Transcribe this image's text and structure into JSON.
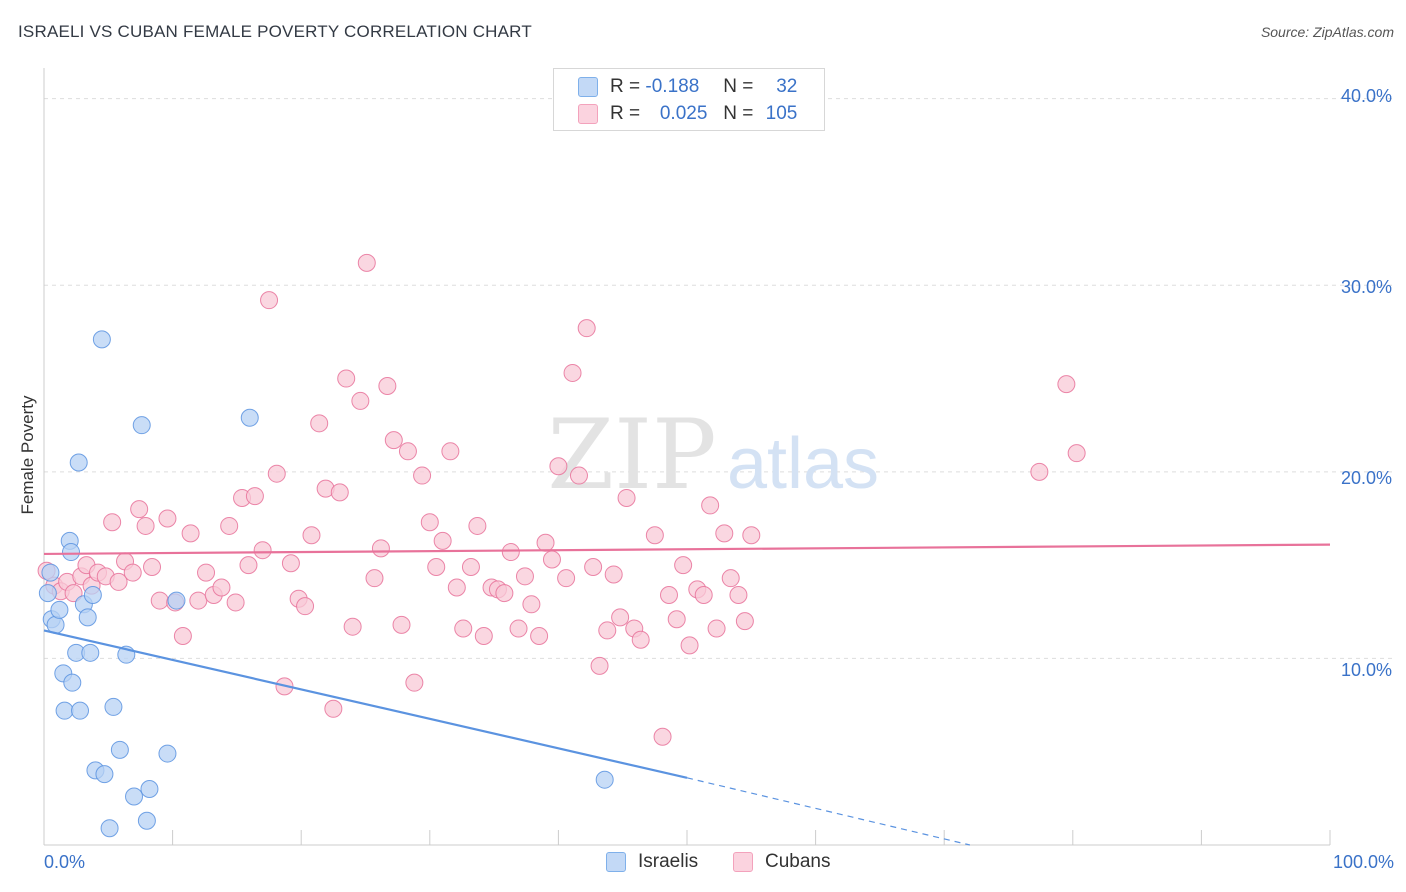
{
  "title": "ISRAELI VS CUBAN FEMALE POVERTY CORRELATION CHART",
  "source": "Source: ZipAtlas.com",
  "watermark": {
    "zip": "ZIP",
    "atlas": "atlas"
  },
  "legend": {
    "rows": [
      {
        "r_label": "R =",
        "r_value": "-0.188",
        "n_label": "N =",
        "n_value": "32",
        "color": "#7fb0ea"
      },
      {
        "r_label": "R =",
        "r_value": "0.025",
        "n_label": "N =",
        "n_value": "105",
        "color": "#f3a2bc"
      }
    ]
  },
  "chart_data": {
    "type": "scatter",
    "title": "ISRAELI VS CUBAN FEMALE POVERTY CORRELATION CHART",
    "ylabel": "Female Poverty",
    "xlabel": "",
    "xlim": [
      0,
      100
    ],
    "ylim": [
      0,
      41
    ],
    "x_tick_labels": [
      "0.0%",
      "100.0%"
    ],
    "y_ticks": [
      10,
      20,
      30,
      40
    ],
    "y_tick_labels": [
      "10.0%",
      "20.0%",
      "30.0%",
      "40.0%"
    ],
    "grid": true,
    "legend_position": "top-center",
    "series": [
      {
        "name": "Israelis",
        "color": "#5b93e0",
        "fill": "#b7d1f4",
        "trend": {
          "x0": 0,
          "y0": 11.5,
          "x1": 50,
          "y1": 3.6,
          "dash_to_x": 72,
          "dash_to_y": 0
        },
        "points": [
          [
            0.3,
            13.5
          ],
          [
            0.6,
            12.1
          ],
          [
            0.9,
            11.8
          ],
          [
            1.2,
            12.6
          ],
          [
            1.5,
            9.2
          ],
          [
            1.6,
            7.2
          ],
          [
            2.0,
            16.3
          ],
          [
            2.1,
            15.7
          ],
          [
            2.2,
            8.7
          ],
          [
            2.5,
            10.3
          ],
          [
            2.7,
            20.5
          ],
          [
            2.8,
            7.2
          ],
          [
            3.1,
            12.9
          ],
          [
            3.4,
            12.2
          ],
          [
            3.6,
            10.3
          ],
          [
            3.8,
            13.4
          ],
          [
            4.0,
            4.0
          ],
          [
            4.5,
            27.1
          ],
          [
            4.7,
            3.8
          ],
          [
            5.1,
            0.9
          ],
          [
            5.4,
            7.4
          ],
          [
            5.9,
            5.1
          ],
          [
            6.4,
            10.2
          ],
          [
            7.0,
            2.6
          ],
          [
            7.6,
            22.5
          ],
          [
            8.0,
            1.3
          ],
          [
            8.2,
            3.0
          ],
          [
            9.6,
            4.9
          ],
          [
            10.3,
            13.1
          ],
          [
            16.0,
            22.9
          ],
          [
            43.6,
            3.5
          ],
          [
            0.5,
            14.6
          ]
        ]
      },
      {
        "name": "Cubans",
        "color": "#e8729a",
        "fill": "#f8c9d7",
        "trend": {
          "x0": 0,
          "y0": 15.6,
          "x1": 100,
          "y1": 16.1
        },
        "points": [
          [
            0.2,
            14.7
          ],
          [
            0.8,
            13.9
          ],
          [
            1.3,
            13.6
          ],
          [
            1.8,
            14.1
          ],
          [
            2.3,
            13.5
          ],
          [
            2.9,
            14.4
          ],
          [
            3.3,
            15.0
          ],
          [
            3.7,
            13.9
          ],
          [
            4.2,
            14.6
          ],
          [
            4.8,
            14.4
          ],
          [
            5.3,
            17.3
          ],
          [
            5.8,
            14.1
          ],
          [
            6.3,
            15.2
          ],
          [
            6.9,
            14.6
          ],
          [
            7.4,
            18.0
          ],
          [
            7.9,
            17.1
          ],
          [
            8.4,
            14.9
          ],
          [
            9.0,
            13.1
          ],
          [
            9.6,
            17.5
          ],
          [
            10.2,
            13.0
          ],
          [
            10.8,
            11.2
          ],
          [
            11.4,
            16.7
          ],
          [
            12.0,
            13.1
          ],
          [
            12.6,
            14.6
          ],
          [
            13.2,
            13.4
          ],
          [
            13.8,
            13.8
          ],
          [
            14.4,
            17.1
          ],
          [
            14.9,
            13.0
          ],
          [
            15.4,
            18.6
          ],
          [
            15.9,
            15.0
          ],
          [
            16.4,
            18.7
          ],
          [
            17.0,
            15.8
          ],
          [
            17.5,
            29.2
          ],
          [
            18.1,
            19.9
          ],
          [
            18.7,
            8.5
          ],
          [
            19.2,
            15.1
          ],
          [
            19.8,
            13.2
          ],
          [
            20.3,
            12.8
          ],
          [
            20.8,
            16.6
          ],
          [
            21.4,
            22.6
          ],
          [
            21.9,
            19.1
          ],
          [
            22.5,
            7.3
          ],
          [
            23.0,
            18.9
          ],
          [
            23.5,
            25.0
          ],
          [
            24.0,
            11.7
          ],
          [
            24.6,
            23.8
          ],
          [
            25.1,
            31.2
          ],
          [
            25.7,
            14.3
          ],
          [
            26.2,
            15.9
          ],
          [
            26.7,
            24.6
          ],
          [
            27.2,
            21.7
          ],
          [
            27.8,
            11.8
          ],
          [
            28.3,
            21.1
          ],
          [
            28.8,
            8.7
          ],
          [
            29.4,
            19.8
          ],
          [
            30.0,
            17.3
          ],
          [
            30.5,
            14.9
          ],
          [
            31.0,
            16.3
          ],
          [
            31.6,
            21.1
          ],
          [
            32.1,
            13.8
          ],
          [
            32.6,
            11.6
          ],
          [
            33.2,
            14.9
          ],
          [
            33.7,
            17.1
          ],
          [
            34.2,
            11.2
          ],
          [
            34.8,
            13.8
          ],
          [
            35.3,
            13.7
          ],
          [
            35.8,
            13.5
          ],
          [
            36.3,
            15.7
          ],
          [
            36.9,
            11.6
          ],
          [
            37.4,
            14.4
          ],
          [
            37.9,
            12.9
          ],
          [
            38.5,
            11.2
          ],
          [
            39.0,
            16.2
          ],
          [
            39.5,
            15.3
          ],
          [
            40.0,
            20.3
          ],
          [
            40.6,
            14.3
          ],
          [
            41.1,
            25.3
          ],
          [
            41.6,
            19.8
          ],
          [
            42.2,
            27.7
          ],
          [
            42.7,
            14.9
          ],
          [
            43.2,
            9.6
          ],
          [
            43.8,
            11.5
          ],
          [
            44.3,
            14.5
          ],
          [
            44.8,
            12.2
          ],
          [
            45.3,
            18.6
          ],
          [
            45.9,
            11.6
          ],
          [
            46.4,
            11.0
          ],
          [
            47.5,
            16.6
          ],
          [
            48.1,
            5.8
          ],
          [
            48.6,
            13.4
          ],
          [
            49.2,
            12.1
          ],
          [
            49.7,
            15.0
          ],
          [
            50.2,
            10.7
          ],
          [
            50.8,
            13.7
          ],
          [
            51.3,
            13.4
          ],
          [
            51.8,
            18.2
          ],
          [
            52.3,
            11.6
          ],
          [
            52.9,
            16.7
          ],
          [
            53.4,
            14.3
          ],
          [
            54.0,
            13.4
          ],
          [
            54.5,
            12.0
          ],
          [
            55.0,
            16.6
          ],
          [
            77.4,
            20.0
          ],
          [
            79.5,
            24.7
          ],
          [
            80.3,
            21.0
          ]
        ]
      }
    ]
  },
  "bottom_legend": [
    {
      "label": "Israelis",
      "color": "#7fb0ea"
    },
    {
      "label": "Cubans",
      "color": "#f3a2bc"
    }
  ]
}
